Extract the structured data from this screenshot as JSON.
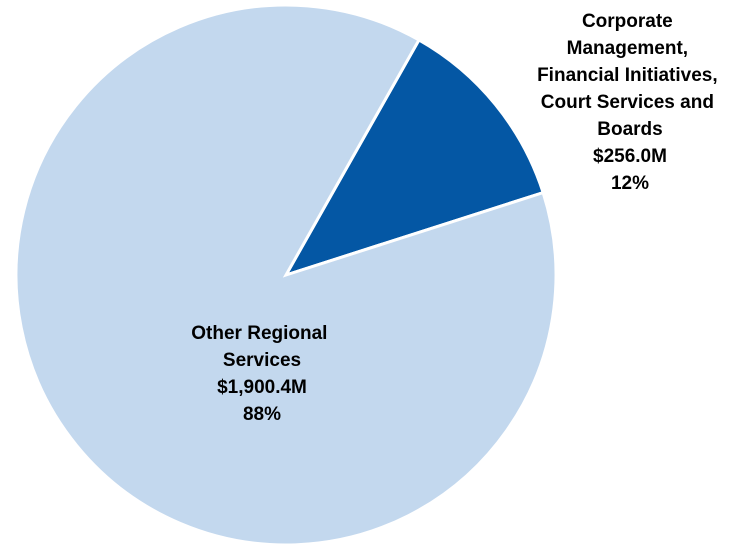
{
  "chart_data": {
    "type": "pie",
    "categories": [
      "Corporate Management, Financial Initiatives, Court Services and Boards",
      "Other Regional Services"
    ],
    "values": [
      256.0,
      1900.4
    ],
    "value_labels": [
      "$256.0M",
      "$1,900.4M"
    ],
    "percent_labels": [
      "12%",
      "88%"
    ],
    "colors": [
      "#0457a4",
      "#c3d8ee"
    ]
  }
}
